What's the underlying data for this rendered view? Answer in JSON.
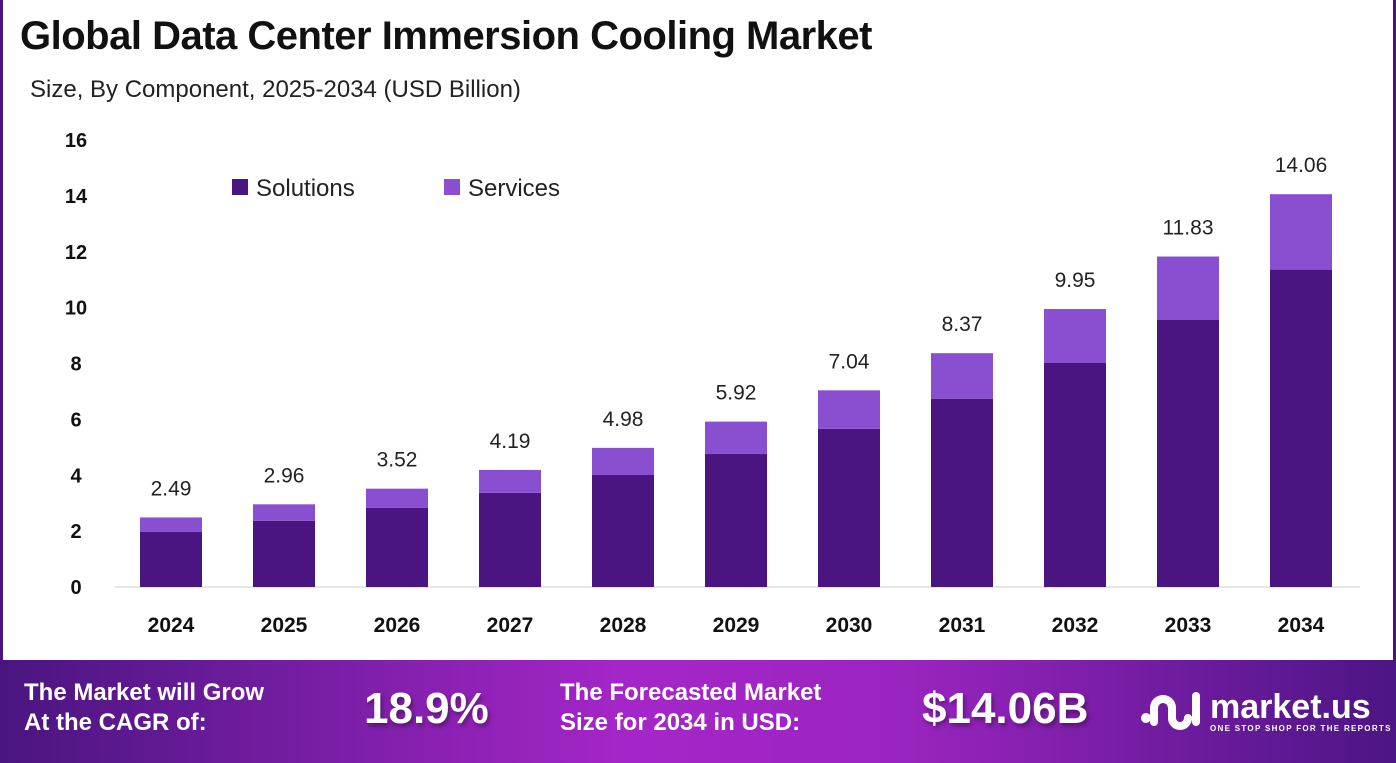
{
  "title": "Global Data Center Immersion Cooling Market",
  "subtitle": "Size, By Component, 2025-2034 (USD Billion)",
  "chart_data": {
    "type": "bar",
    "stacked": true,
    "title": "Global Data Center Immersion Cooling Market",
    "subtitle": "Size, By Component, 2025-2034 (USD Billion)",
    "categories": [
      "2024",
      "2025",
      "2026",
      "2027",
      "2028",
      "2029",
      "2030",
      "2031",
      "2032",
      "2033",
      "2034"
    ],
    "series": [
      {
        "name": "Solutions",
        "color": "#4a1580",
        "values": [
          1.97,
          2.37,
          2.83,
          3.37,
          4.01,
          4.77,
          5.66,
          6.74,
          8.03,
          9.57,
          11.36
        ]
      },
      {
        "name": "Services",
        "color": "#8a4fd0",
        "values": [
          0.52,
          0.59,
          0.69,
          0.82,
          0.97,
          1.15,
          1.38,
          1.63,
          1.92,
          2.26,
          2.7
        ]
      }
    ],
    "totals": [
      "2.49",
      "2.96",
      "3.52",
      "4.19",
      "4.98",
      "5.92",
      "7.04",
      "8.37",
      "9.95",
      "11.83",
      "14.06"
    ],
    "ylim": [
      0,
      16
    ],
    "yticks": [
      "0",
      "2",
      "4",
      "6",
      "8",
      "10",
      "12",
      "14",
      "16"
    ],
    "xlabel": "",
    "ylabel": "",
    "grid": false,
    "legend": "top-left"
  },
  "footer": {
    "cagr_label_1": "The Market will Grow",
    "cagr_label_2": "At the CAGR of:",
    "cagr_value": "18.9%",
    "forecast_label_1": "The Forecasted Market",
    "forecast_label_2": "Size for 2034 in USD:",
    "forecast_value": "$14.06B",
    "logo_name": "market.us",
    "logo_tagline": "ONE STOP SHOP FOR THE REPORTS"
  }
}
